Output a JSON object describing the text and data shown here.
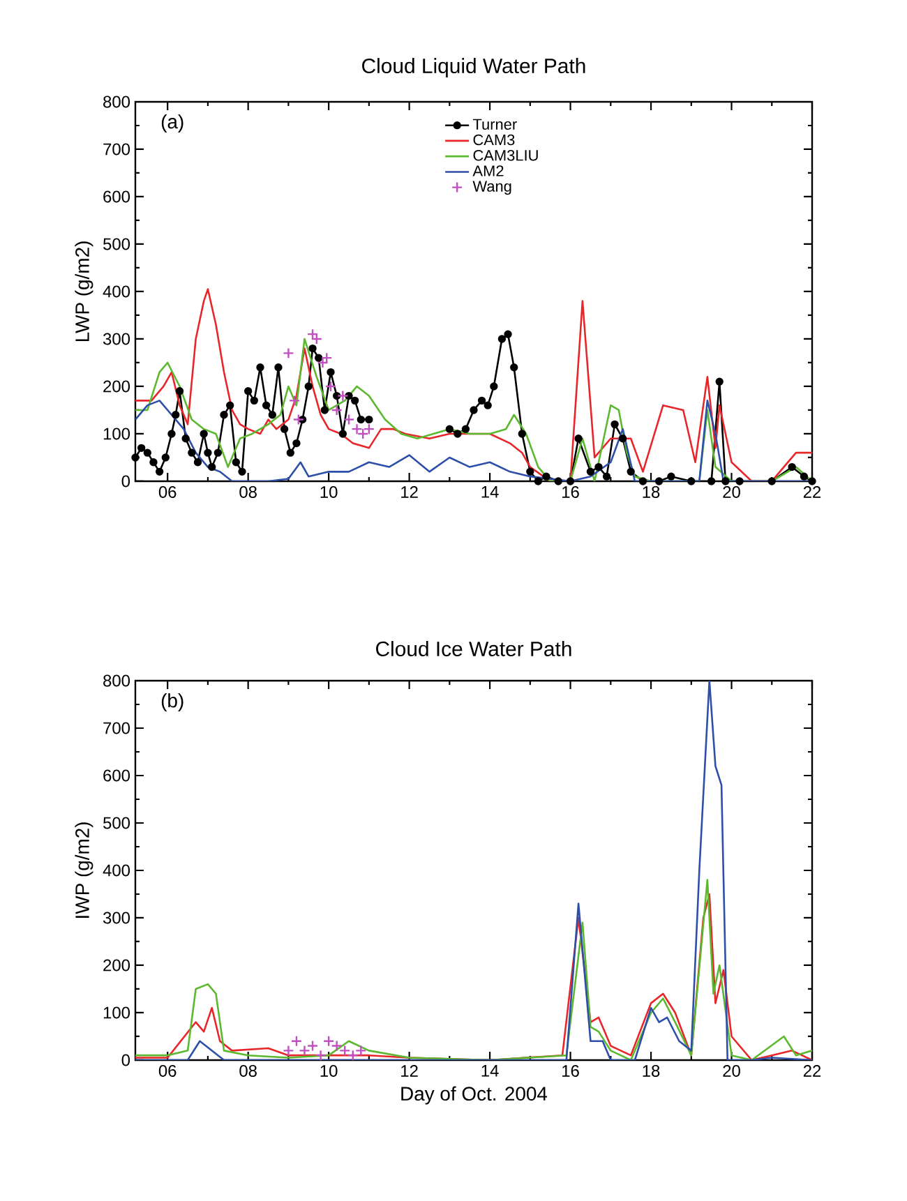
{
  "chart_data": [
    {
      "type": "line",
      "title": "Cloud Liquid Water Path",
      "ylabel": "LWP (g/m2)",
      "annotations": [
        "(a)"
      ],
      "legend": "top",
      "xlim": [
        5.2,
        22
      ],
      "ylim": [
        0,
        800
      ],
      "xticks": [
        {
          "value": 6,
          "label": "06"
        },
        {
          "value": 8,
          "label": "08"
        },
        {
          "value": 10,
          "label": "10"
        },
        {
          "value": 12,
          "label": "12"
        },
        {
          "value": 14,
          "label": "14"
        },
        {
          "value": 16,
          "label": "16"
        },
        {
          "value": 18,
          "label": "18"
        },
        {
          "value": 20,
          "label": "20"
        },
        {
          "value": 22,
          "label": "22"
        }
      ],
      "yticks": [
        0,
        100,
        200,
        300,
        400,
        500,
        600,
        700,
        800
      ],
      "series": [
        {
          "name": "Turner",
          "color": "#000000",
          "marker": "circle",
          "x": [
            5.2,
            5.35,
            5.5,
            5.65,
            5.8,
            5.95,
            6.1,
            6.2,
            6.3,
            6.45,
            6.6,
            6.75,
            6.9,
            7.0,
            7.1,
            7.25,
            7.4,
            7.55,
            7.7,
            7.85,
            8.0,
            8.15,
            8.3,
            8.45,
            8.6,
            8.75,
            8.9,
            9.05,
            9.2,
            9.35,
            9.5,
            9.6,
            9.75,
            9.9,
            10.05,
            10.2,
            10.35,
            10.5,
            10.65,
            10.8,
            11.0,
            12.0,
            13.0,
            13.2,
            13.4,
            13.6,
            13.8,
            13.95,
            14.1,
            14.3,
            14.45,
            14.6,
            14.8,
            15.0,
            15.2,
            15.4,
            15.7,
            16.0,
            16.2,
            16.5,
            16.7,
            16.9,
            17.1,
            17.3,
            17.5,
            17.8,
            18.2,
            18.5,
            19.0,
            19.5,
            19.7,
            19.85,
            20.2,
            21.0,
            21.5,
            21.8,
            22.0
          ],
          "values": [
            50,
            70,
            60,
            40,
            20,
            50,
            100,
            140,
            190,
            90,
            60,
            40,
            100,
            60,
            30,
            60,
            140,
            160,
            40,
            20,
            190,
            170,
            240,
            160,
            140,
            240,
            110,
            60,
            80,
            130,
            200,
            280,
            260,
            150,
            230,
            180,
            100,
            180,
            170,
            130,
            130,
            null,
            110,
            100,
            110,
            150,
            170,
            160,
            200,
            300,
            310,
            240,
            100,
            20,
            0,
            10,
            0,
            0,
            90,
            20,
            30,
            10,
            120,
            90,
            20,
            0,
            0,
            10,
            0,
            0,
            210,
            0,
            0,
            0,
            30,
            10,
            0
          ]
        },
        {
          "name": "CAM3",
          "color": "#e8262a",
          "x": [
            5.2,
            5.6,
            5.9,
            6.1,
            6.3,
            6.5,
            6.7,
            6.9,
            7.0,
            7.2,
            7.4,
            7.6,
            7.8,
            8.0,
            8.3,
            8.5,
            8.7,
            9.0,
            9.2,
            9.4,
            9.6,
            9.8,
            10.0,
            10.3,
            10.6,
            11.0,
            11.3,
            11.6,
            11.9,
            12.5,
            13.0,
            13.5,
            14.0,
            14.5,
            14.8,
            15.0,
            15.5,
            16.0,
            16.3,
            16.6,
            17.0,
            17.5,
            17.8,
            18.3,
            18.8,
            19.1,
            19.4,
            19.6,
            19.7,
            20.0,
            20.5,
            21.0,
            21.6,
            22.0
          ],
          "values": [
            170,
            170,
            200,
            230,
            160,
            120,
            300,
            380,
            405,
            330,
            230,
            150,
            120,
            110,
            100,
            130,
            110,
            130,
            180,
            280,
            200,
            140,
            110,
            100,
            80,
            70,
            110,
            110,
            100,
            90,
            100,
            100,
            100,
            80,
            60,
            30,
            0,
            0,
            380,
            50,
            90,
            90,
            20,
            160,
            150,
            40,
            220,
            70,
            160,
            40,
            0,
            0,
            60,
            60
          ]
        },
        {
          "name": "CAM3LIU",
          "color": "#5cb82f",
          "x": [
            5.2,
            5.5,
            5.8,
            6.0,
            6.3,
            6.6,
            6.9,
            7.2,
            7.5,
            7.8,
            8.1,
            8.5,
            8.8,
            9.0,
            9.2,
            9.4,
            9.7,
            10.0,
            10.4,
            10.7,
            11.0,
            11.4,
            11.8,
            12.2,
            12.6,
            13.0,
            13.5,
            14.0,
            14.4,
            14.6,
            14.9,
            15.2,
            15.5,
            16.0,
            16.3,
            16.6,
            17.0,
            17.2,
            17.4,
            17.6,
            18.0,
            19.2,
            19.4,
            19.6,
            20.0,
            21.0,
            21.6,
            22.0
          ],
          "values": [
            150,
            150,
            230,
            250,
            200,
            130,
            110,
            100,
            30,
            90,
            100,
            120,
            140,
            200,
            160,
            300,
            220,
            150,
            170,
            200,
            180,
            130,
            100,
            90,
            100,
            110,
            100,
            100,
            110,
            140,
            100,
            30,
            0,
            0,
            90,
            0,
            160,
            150,
            60,
            10,
            0,
            0,
            150,
            30,
            0,
            0,
            30,
            0
          ]
        },
        {
          "name": "AM2",
          "color": "#2e4fa8",
          "x": [
            5.2,
            5.5,
            5.8,
            6.1,
            6.4,
            6.7,
            7.0,
            7.3,
            7.6,
            8.0,
            8.5,
            9.0,
            9.3,
            9.5,
            10.0,
            10.5,
            11.0,
            11.5,
            12.0,
            12.5,
            13.0,
            13.5,
            14.0,
            14.5,
            15.0,
            16.0,
            16.5,
            17.0,
            17.3,
            17.6,
            19.2,
            19.4,
            19.6,
            19.8,
            22.0
          ],
          "values": [
            130,
            160,
            170,
            140,
            110,
            60,
            30,
            20,
            0,
            0,
            0,
            5,
            40,
            10,
            20,
            20,
            40,
            30,
            55,
            20,
            50,
            30,
            40,
            20,
            10,
            0,
            10,
            40,
            110,
            0,
            0,
            170,
            100,
            0,
            0
          ]
        },
        {
          "name": "Wang",
          "type": "scatter",
          "color": "#c050c0",
          "marker": "cross",
          "x": [
            9.0,
            9.15,
            9.25,
            9.6,
            9.7,
            9.85,
            9.95,
            10.05,
            10.2,
            10.35,
            10.5,
            10.7,
            10.85,
            11.0
          ],
          "values": [
            270,
            170,
            130,
            310,
            300,
            250,
            260,
            200,
            150,
            180,
            130,
            110,
            100,
            110
          ]
        }
      ]
    },
    {
      "type": "line",
      "title": "Cloud Ice Water Path",
      "ylabel": "IWP (g/m2)",
      "xlabel": "Day of Oct. 2004",
      "annotations": [
        "(b)"
      ],
      "xlim": [
        5.2,
        22
      ],
      "ylim": [
        0,
        800
      ],
      "xticks": [
        {
          "value": 6,
          "label": "06"
        },
        {
          "value": 8,
          "label": "08"
        },
        {
          "value": 10,
          "label": "10"
        },
        {
          "value": 12,
          "label": "12"
        },
        {
          "value": 14,
          "label": "14"
        },
        {
          "value": 16,
          "label": "16"
        },
        {
          "value": 18,
          "label": "18"
        },
        {
          "value": 20,
          "label": "20"
        },
        {
          "value": 22,
          "label": "22"
        }
      ],
      "yticks": [
        0,
        100,
        200,
        300,
        400,
        500,
        600,
        700,
        800
      ],
      "series": [
        {
          "color": "#e8262a",
          "x": [
            5.2,
            6.0,
            6.7,
            6.9,
            7.1,
            7.3,
            7.6,
            8.5,
            9.0,
            10.0,
            11.0,
            12.0,
            14.0,
            15.8,
            16.2,
            16.5,
            16.7,
            17.0,
            17.5,
            18.0,
            18.3,
            18.6,
            19.0,
            19.3,
            19.45,
            19.6,
            19.8,
            20.0,
            20.5,
            21.0,
            21.5,
            22.0
          ],
          "values": [
            5,
            5,
            80,
            60,
            110,
            40,
            20,
            25,
            10,
            10,
            10,
            5,
            0,
            10,
            300,
            80,
            90,
            30,
            10,
            120,
            140,
            100,
            10,
            300,
            350,
            120,
            190,
            50,
            0,
            10,
            20,
            0
          ]
        },
        {
          "color": "#5cb82f",
          "x": [
            5.2,
            6.0,
            6.5,
            6.7,
            7.0,
            7.2,
            7.4,
            8.0,
            9.0,
            10.0,
            10.5,
            11.0,
            12.0,
            14.0,
            15.9,
            16.3,
            16.5,
            16.7,
            17.0,
            17.5,
            18.0,
            18.3,
            18.6,
            19.0,
            19.4,
            19.55,
            19.7,
            20.0,
            20.5,
            21.3,
            21.6,
            22.0
          ],
          "values": [
            10,
            10,
            20,
            150,
            160,
            140,
            20,
            10,
            5,
            10,
            40,
            20,
            5,
            0,
            10,
            290,
            70,
            60,
            20,
            0,
            100,
            130,
            80,
            10,
            380,
            140,
            200,
            10,
            0,
            50,
            10,
            20
          ]
        },
        {
          "color": "#2e4fa8",
          "x": [
            5.2,
            6.5,
            6.8,
            7.1,
            7.4,
            9.0,
            12.0,
            14.0,
            15.9,
            16.2,
            16.5,
            16.8,
            17.0,
            17.6,
            18.0,
            18.2,
            18.4,
            18.7,
            19.0,
            19.2,
            19.45,
            19.6,
            19.75,
            19.9,
            20.5,
            21.0,
            22.0
          ],
          "values": [
            0,
            0,
            40,
            20,
            0,
            0,
            0,
            0,
            0,
            330,
            40,
            40,
            0,
            0,
            110,
            80,
            90,
            40,
            20,
            400,
            800,
            620,
            580,
            0,
            0,
            5,
            0
          ]
        },
        {
          "type": "scatter",
          "color": "#c050c0",
          "marker": "cross",
          "x": [
            9.0,
            9.2,
            9.4,
            9.6,
            9.8,
            10.0,
            10.2,
            10.4,
            10.6,
            10.8
          ],
          "values": [
            20,
            40,
            20,
            30,
            10,
            40,
            30,
            20,
            10,
            20
          ]
        }
      ]
    }
  ]
}
